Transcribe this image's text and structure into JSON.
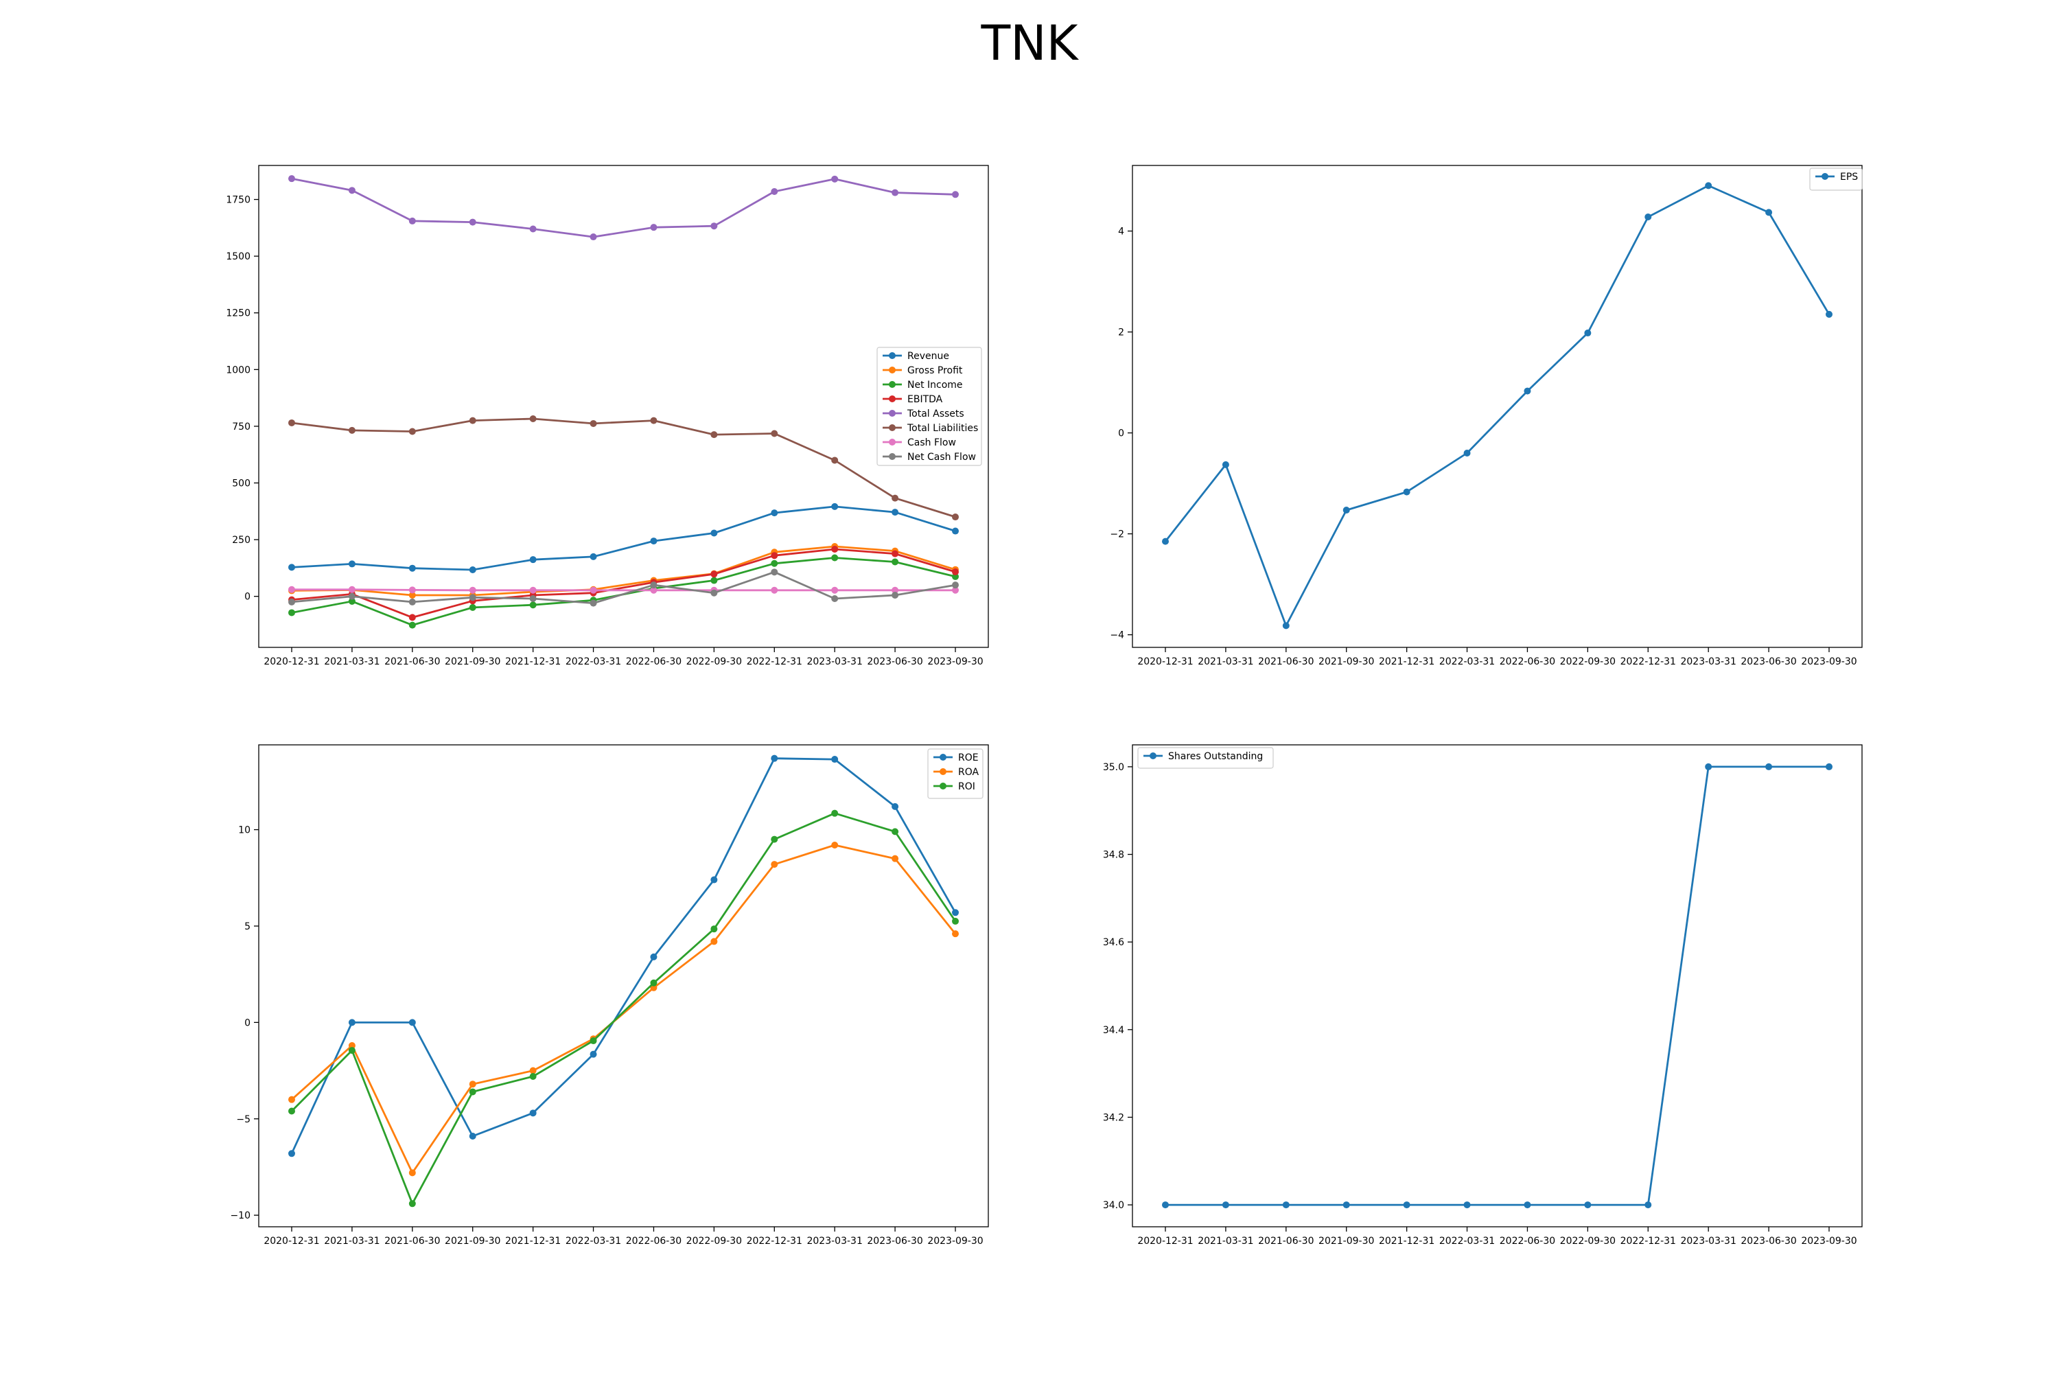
{
  "figure": {
    "title": "TNK"
  },
  "chart_data": [
    {
      "type": "line",
      "x": [
        "2020-12-31",
        "2021-03-31",
        "2021-06-30",
        "2021-09-30",
        "2021-12-31",
        "2022-03-31",
        "2022-06-30",
        "2022-09-30",
        "2022-12-31",
        "2023-03-31",
        "2023-06-30",
        "2023-09-30"
      ],
      "ylim": [
        -225,
        1900
      ],
      "yticks": [
        0,
        250,
        500,
        750,
        1000,
        1250,
        1500,
        1750
      ],
      "legend": "center-right",
      "grid": false,
      "series": [
        {
          "name": "Revenue",
          "color": "#1f77b4",
          "values": [
            128,
            143,
            124,
            117,
            162,
            175,
            244,
            279,
            368,
            396,
            371,
            288
          ]
        },
        {
          "name": "Gross Profit",
          "color": "#ff7f0e",
          "values": [
            25,
            28,
            5,
            5,
            20,
            30,
            70,
            100,
            195,
            220,
            200,
            118
          ]
        },
        {
          "name": "Net Income",
          "color": "#2ca02c",
          "values": [
            -72,
            -22,
            -127,
            -49,
            -38,
            -17,
            35,
            70,
            145,
            170,
            152,
            87
          ]
        },
        {
          "name": "EBITDA",
          "color": "#d62728",
          "values": [
            -15,
            10,
            -93,
            -20,
            5,
            15,
            62,
            98,
            180,
            208,
            188,
            108
          ]
        },
        {
          "name": "Total Assets",
          "color": "#9467bd",
          "values": [
            1842,
            1790,
            1655,
            1650,
            1620,
            1585,
            1627,
            1633,
            1785,
            1840,
            1780,
            1772
          ]
        },
        {
          "name": "Total Liabilities",
          "color": "#8c564b",
          "values": [
            765,
            732,
            727,
            775,
            783,
            762,
            775,
            713,
            718,
            600,
            433,
            350
          ]
        },
        {
          "name": "Cash Flow",
          "color": "#e377c2",
          "values": [
            30,
            30,
            28,
            27,
            27,
            27,
            27,
            27,
            27,
            27,
            27,
            27
          ]
        },
        {
          "name": "Net Cash Flow",
          "color": "#7f7f7f",
          "values": [
            -25,
            0,
            -25,
            -5,
            -10,
            -30,
            50,
            15,
            107,
            -10,
            5,
            50
          ]
        }
      ]
    },
    {
      "type": "line",
      "x": [
        "2020-12-31",
        "2021-03-31",
        "2021-06-30",
        "2021-09-30",
        "2021-12-31",
        "2022-03-31",
        "2022-06-30",
        "2022-09-30",
        "2022-12-31",
        "2023-03-31",
        "2023-06-30",
        "2023-09-30"
      ],
      "ylim": [
        -4.25,
        5.3
      ],
      "yticks": [
        -4,
        -2,
        0,
        2,
        4
      ],
      "legend": "top-right",
      "grid": false,
      "series": [
        {
          "name": "EPS",
          "color": "#1f77b4",
          "values": [
            -2.15,
            -0.63,
            -3.82,
            -1.53,
            -1.17,
            -0.4,
            0.83,
            1.98,
            4.28,
            4.9,
            4.37,
            2.35
          ]
        }
      ]
    },
    {
      "type": "line",
      "x": [
        "2020-12-31",
        "2021-03-31",
        "2021-06-30",
        "2021-09-30",
        "2021-12-31",
        "2022-03-31",
        "2022-06-30",
        "2022-09-30",
        "2022-12-31",
        "2023-03-31",
        "2023-06-30",
        "2023-09-30"
      ],
      "ylim": [
        -10.6,
        14.4
      ],
      "yticks": [
        -10,
        -5,
        0,
        5,
        10
      ],
      "legend": "top-right",
      "grid": false,
      "series": [
        {
          "name": "ROE",
          "color": "#1f77b4",
          "values": [
            -6.8,
            0,
            0,
            -5.9,
            -4.7,
            -1.65,
            3.4,
            7.4,
            13.7,
            13.65,
            11.2,
            5.7
          ]
        },
        {
          "name": "ROA",
          "color": "#ff7f0e",
          "values": [
            -4.0,
            -1.2,
            -7.8,
            -3.2,
            -2.5,
            -0.85,
            1.8,
            4.2,
            8.2,
            9.2,
            8.5,
            4.6
          ]
        },
        {
          "name": "ROI",
          "color": "#2ca02c",
          "values": [
            -4.6,
            -1.45,
            -9.4,
            -3.6,
            -2.8,
            -0.95,
            2.05,
            4.85,
            9.5,
            10.85,
            9.9,
            5.25
          ]
        }
      ]
    },
    {
      "type": "line",
      "x": [
        "2020-12-31",
        "2021-03-31",
        "2021-06-30",
        "2021-09-30",
        "2021-12-31",
        "2022-03-31",
        "2022-06-30",
        "2022-09-30",
        "2022-12-31",
        "2023-03-31",
        "2023-06-30",
        "2023-09-30"
      ],
      "ylim": [
        33.95,
        35.05
      ],
      "yticks": [
        "34.0",
        "34.2",
        "34.4",
        "34.6",
        "34.8",
        "35.0"
      ],
      "legend": "top-left",
      "grid": false,
      "series": [
        {
          "name": "Shares Outstanding",
          "color": "#1f77b4",
          "values": [
            34,
            34,
            34,
            34,
            34,
            34,
            34,
            34,
            34,
            35,
            35,
            35
          ]
        }
      ]
    }
  ]
}
